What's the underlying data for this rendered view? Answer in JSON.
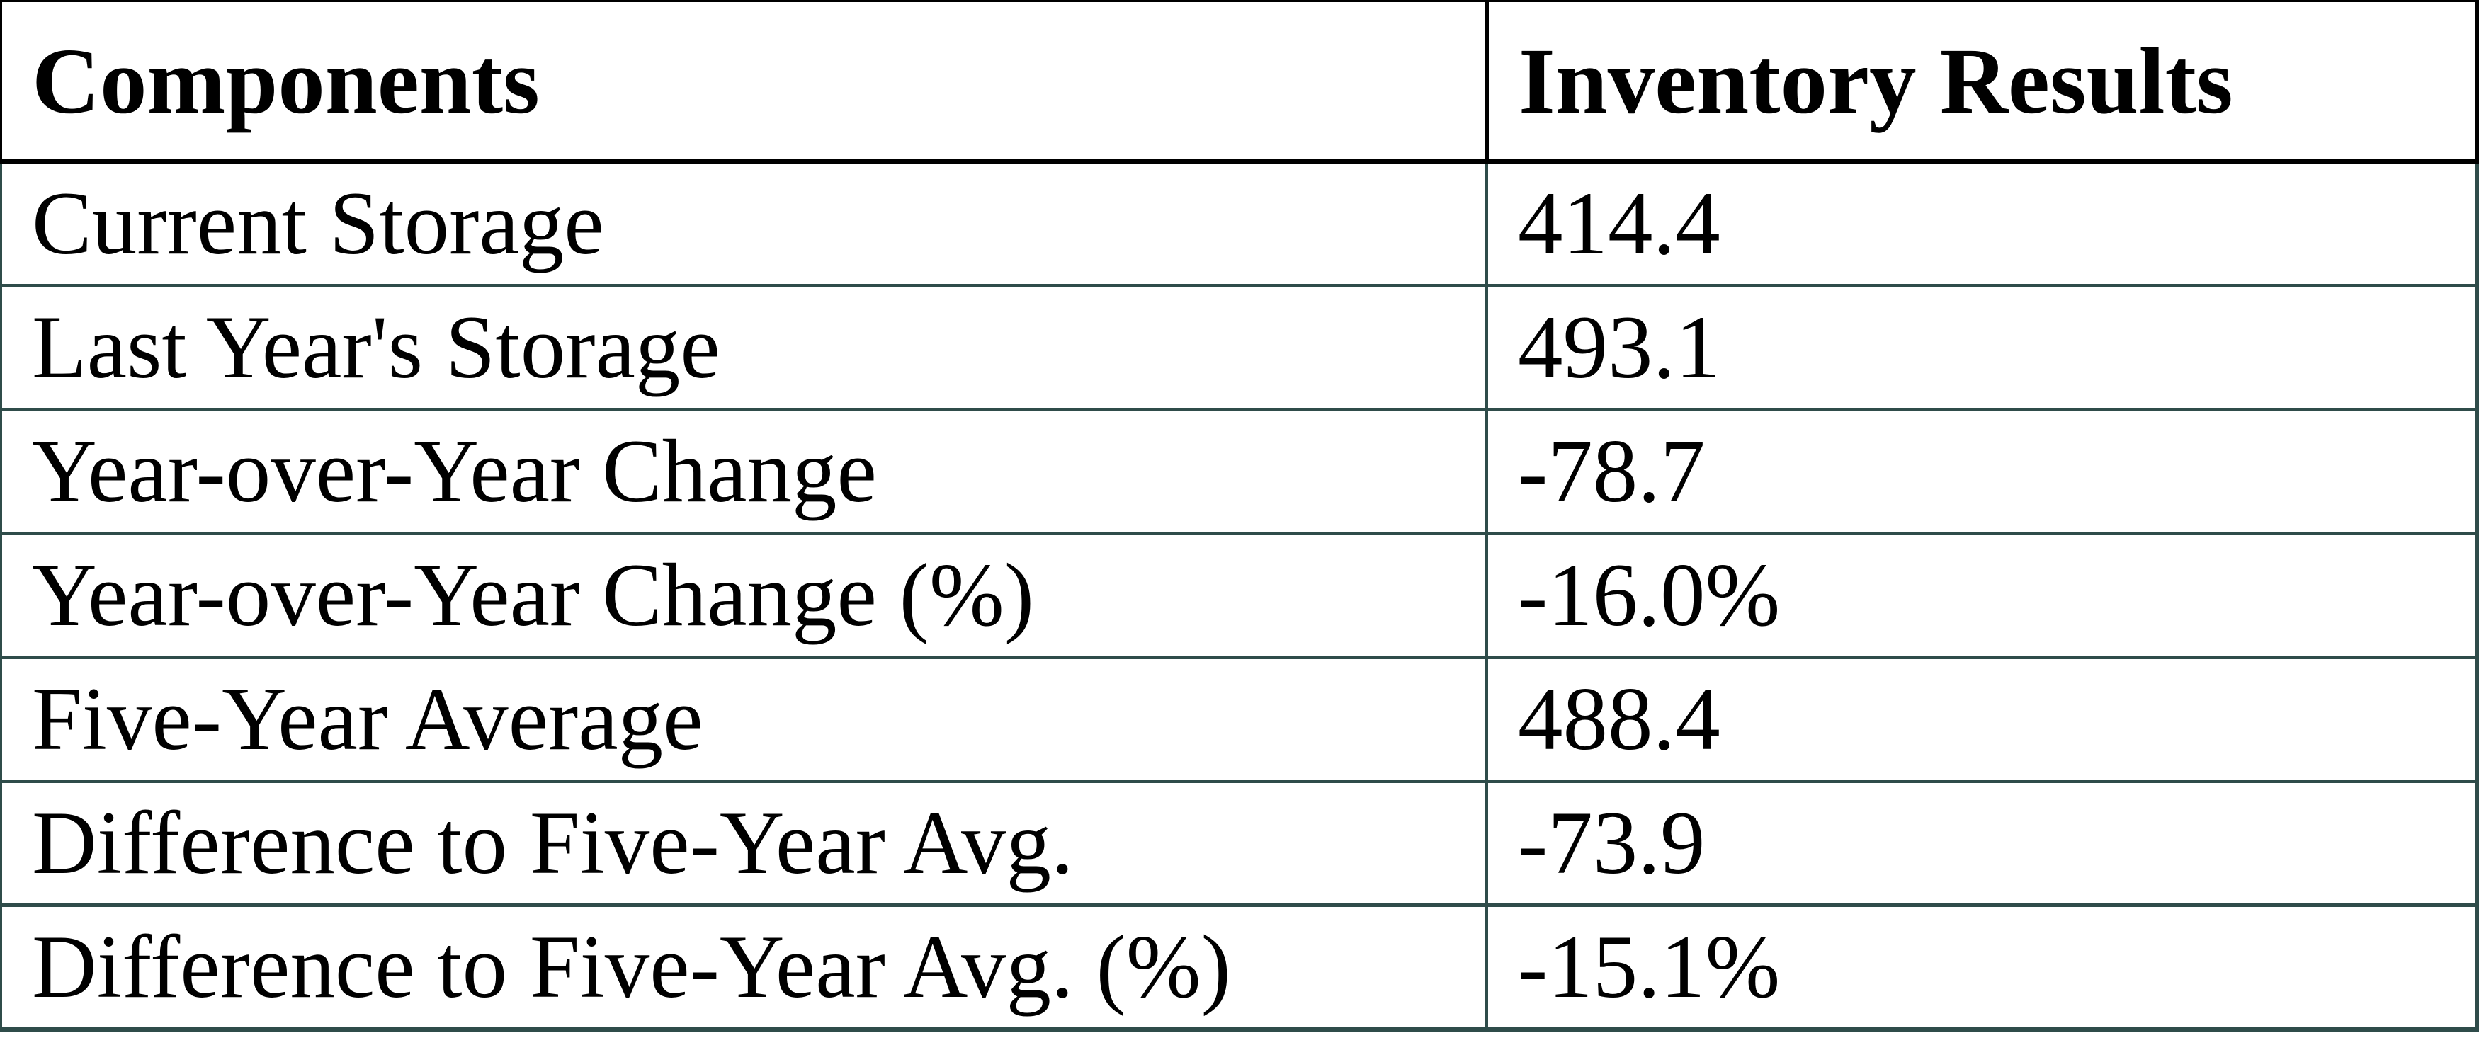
{
  "chart_data": {
    "type": "table",
    "columns": [
      "Components",
      "Inventory Results"
    ],
    "rows": [
      {
        "label": "Current Storage",
        "value": "414.4"
      },
      {
        "label": "Last Year's Storage",
        "value": "493.1"
      },
      {
        "label": "Year-over-Year Change",
        "value": "-78.7"
      },
      {
        "label": "Year-over-Year Change (%)",
        "value": "-16.0%"
      },
      {
        "label": "Five-Year Average",
        "value": "488.4"
      },
      {
        "label": "Difference to Five-Year Avg.",
        "value": "-73.9"
      },
      {
        "label": "Difference to Five-Year Avg. (%)",
        "value": "-15.1%"
      }
    ]
  },
  "colors": {
    "header_border": "#000000",
    "body_border": "#2F4C4A",
    "text": "#000000",
    "background": "#FFFFFF"
  }
}
